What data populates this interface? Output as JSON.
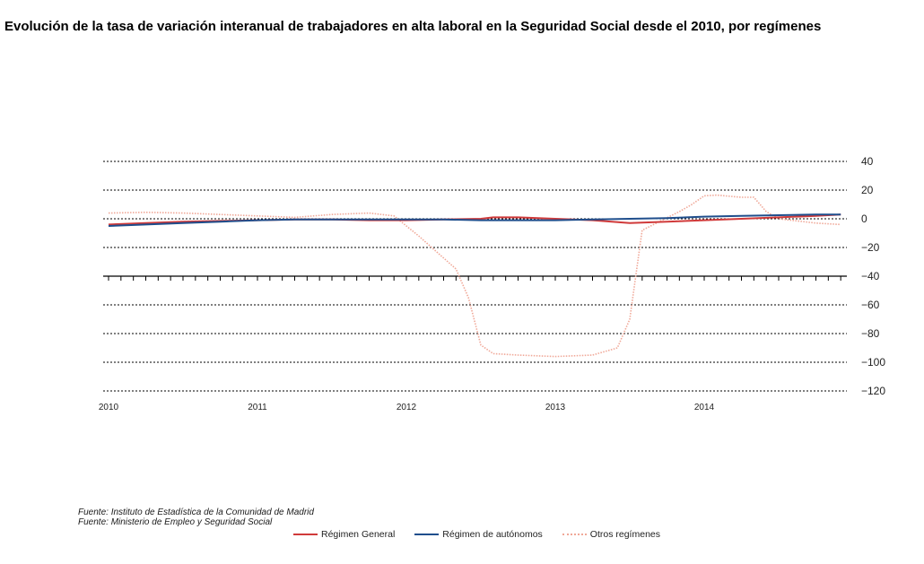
{
  "title": "Evolución de la tasa de variación interanual de trabajadores en alta laboral en la Seguridad Social desde el 2010, por regímenes",
  "sources": [
    "Fuente: Instituto de Estadística de la Comunidad de Madrid",
    "Fuente: Ministerio de Empleo y Seguridad Social"
  ],
  "colors": {
    "general": "#d03a3a",
    "autonomos": "#1f4e8c",
    "otros": "#f0a898",
    "grid": "#000000"
  },
  "chart_data": {
    "type": "line",
    "title": "Evolución de la tasa de variación interanual de trabajadores en alta laboral en la Seguridad Social desde el 2010, por regímenes",
    "xlabel": "",
    "ylabel": "",
    "ylim": [
      -120,
      40
    ],
    "yticks": [
      40,
      20,
      0,
      -20,
      -40,
      -60,
      -80,
      -100,
      -120
    ],
    "ytick_labels": [
      "40",
      "20",
      "0",
      "−20",
      "−40",
      "−60",
      "−80",
      "−100",
      "−120"
    ],
    "xticks": [
      "2010",
      "2011",
      "2012",
      "2013",
      "2014"
    ],
    "x_axis_at": -40,
    "grid": "horizontal dashed",
    "legend_position": "bottom",
    "series": [
      {
        "name": "Régimen General",
        "key": "general",
        "style": "solid",
        "points": [
          [
            "2010-01",
            -4
          ],
          [
            "2010-04",
            -3
          ],
          [
            "2010-07",
            -2
          ],
          [
            "2010-10",
            -1.5
          ],
          [
            "2011-01",
            -1
          ],
          [
            "2011-04",
            -0.5
          ],
          [
            "2011-07",
            -0.5
          ],
          [
            "2011-10",
            -1
          ],
          [
            "2012-01",
            -1
          ],
          [
            "2012-04",
            -0.5
          ],
          [
            "2012-07",
            0
          ],
          [
            "2012-08",
            1
          ],
          [
            "2012-10",
            1
          ],
          [
            "2013-01",
            0
          ],
          [
            "2013-04",
            -1
          ],
          [
            "2013-07",
            -3
          ],
          [
            "2013-10",
            -2
          ],
          [
            "2014-01",
            -1
          ],
          [
            "2014-04",
            0
          ],
          [
            "2014-07",
            1
          ],
          [
            "2014-10",
            2
          ],
          [
            "2014-12",
            3
          ]
        ]
      },
      {
        "name": "Régimen de autónomos",
        "key": "autonomos",
        "style": "solid",
        "points": [
          [
            "2010-01",
            -5
          ],
          [
            "2010-04",
            -4
          ],
          [
            "2010-07",
            -3
          ],
          [
            "2010-10",
            -2
          ],
          [
            "2011-01",
            -1
          ],
          [
            "2011-04",
            -0.5
          ],
          [
            "2011-07",
            -0.5
          ],
          [
            "2011-10",
            -0.5
          ],
          [
            "2012-01",
            -0.5
          ],
          [
            "2012-04",
            -0.5
          ],
          [
            "2012-07",
            -1
          ],
          [
            "2012-10",
            -1
          ],
          [
            "2013-01",
            -1
          ],
          [
            "2013-04",
            -0.5
          ],
          [
            "2013-07",
            0
          ],
          [
            "2013-10",
            0.5
          ],
          [
            "2014-01",
            1.5
          ],
          [
            "2014-04",
            2
          ],
          [
            "2014-07",
            2.5
          ],
          [
            "2014-10",
            3
          ],
          [
            "2014-12",
            3
          ]
        ]
      },
      {
        "name": "Otros regímenes",
        "key": "otros",
        "style": "dotted",
        "points": [
          [
            "2010-01",
            4
          ],
          [
            "2010-04",
            4.5
          ],
          [
            "2010-07",
            4
          ],
          [
            "2010-10",
            3
          ],
          [
            "2011-01",
            2
          ],
          [
            "2011-04",
            1
          ],
          [
            "2011-07",
            3
          ],
          [
            "2011-10",
            4
          ],
          [
            "2011-12",
            2
          ],
          [
            "2012-02",
            -12
          ],
          [
            "2012-05",
            -35
          ],
          [
            "2012-06",
            -55
          ],
          [
            "2012-07",
            -88
          ],
          [
            "2012-08",
            -94
          ],
          [
            "2012-10",
            -95
          ],
          [
            "2013-01",
            -96
          ],
          [
            "2013-04",
            -95
          ],
          [
            "2013-06",
            -90
          ],
          [
            "2013-07",
            -70
          ],
          [
            "2013-08",
            -8
          ],
          [
            "2013-11",
            5
          ],
          [
            "2013-12",
            10
          ],
          [
            "2014-01",
            16
          ],
          [
            "2014-02",
            16.5
          ],
          [
            "2014-04",
            15
          ],
          [
            "2014-05",
            15
          ],
          [
            "2014-06",
            5
          ],
          [
            "2014-07",
            0
          ],
          [
            "2014-10",
            -3
          ],
          [
            "2014-12",
            -4
          ]
        ]
      }
    ]
  }
}
